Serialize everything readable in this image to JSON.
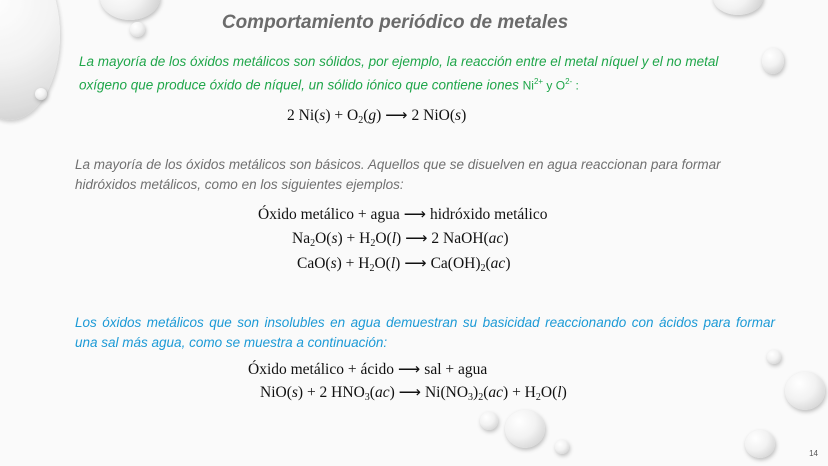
{
  "slide": {
    "title": "Comportamiento periódico de metales",
    "page_number": "14",
    "colors": {
      "title": "#6b6b6b",
      "para1": "#1fa64a",
      "para2": "#707070",
      "para3": "#1c9ad6"
    },
    "para1": {
      "text": "La mayoría de los óxidos metálicos son sólidos, por ejemplo, la reacción entre el metal níquel y el no metal oxígeno que produce óxido de níquel, un sólido iónico que contiene iones ",
      "ion1": "Ni",
      "ion1_sup": "2+",
      "conj": " y ",
      "ion2": "O",
      "ion2_sup": "2-",
      "end": " :"
    },
    "para2": "La mayoría de los óxidos metálicos son básicos. Aquellos que se disuelven en agua reaccionan para formar hidróxidos metálicos, como en los siguientes ejemplos:",
    "para3": "Los óxidos metálicos que son insolubles en agua demuestran su basicidad reaccionando con ácidos para formar una sal más agua, como se muestra a continuación:",
    "equations": [
      [
        [
          "2 Ni(",
          ""
        ],
        [
          "s",
          "i"
        ],
        [
          ") + O",
          ""
        ],
        [
          "2",
          "sub"
        ],
        [
          "(",
          ""
        ],
        [
          "g",
          "i"
        ],
        [
          ")",
          ""
        ],
        [
          "→",
          "arr"
        ],
        [
          "2 NiO(",
          ""
        ],
        [
          "s",
          "i"
        ],
        [
          ")",
          ""
        ]
      ],
      [
        [
          "Óxido metálico + agua",
          ""
        ],
        [
          "→",
          "arr"
        ],
        [
          "hidróxido metálico",
          ""
        ]
      ],
      [
        [
          "Na",
          ""
        ],
        [
          "2",
          "sub"
        ],
        [
          "O(",
          ""
        ],
        [
          "s",
          "i"
        ],
        [
          ") + H",
          ""
        ],
        [
          "2",
          "sub"
        ],
        [
          "O(",
          ""
        ],
        [
          "l",
          "i"
        ],
        [
          ")",
          ""
        ],
        [
          "→",
          "arr"
        ],
        [
          "2 NaOH(",
          ""
        ],
        [
          "ac",
          "i"
        ],
        [
          ")",
          ""
        ]
      ],
      [
        [
          "CaO(",
          ""
        ],
        [
          "s",
          "i"
        ],
        [
          ") + H",
          ""
        ],
        [
          "2",
          "sub"
        ],
        [
          "O(",
          ""
        ],
        [
          "l",
          "i"
        ],
        [
          ")",
          ""
        ],
        [
          "→",
          "arr"
        ],
        [
          "Ca(OH)",
          ""
        ],
        [
          "2",
          "sub"
        ],
        [
          "(",
          ""
        ],
        [
          "ac",
          "i"
        ],
        [
          ")",
          ""
        ]
      ],
      [
        [
          "Óxido metálico + ácido",
          ""
        ],
        [
          "→",
          "arr"
        ],
        [
          "sal + agua",
          ""
        ]
      ],
      [
        [
          "NiO(",
          ""
        ],
        [
          "s",
          "i"
        ],
        [
          ") + 2 HNO",
          ""
        ],
        [
          "3",
          "sub"
        ],
        [
          "(",
          ""
        ],
        [
          "ac",
          "i"
        ],
        [
          ")",
          ""
        ],
        [
          "→",
          "arr"
        ],
        [
          "Ni(NO",
          ""
        ],
        [
          "3",
          "sub"
        ],
        [
          ")",
          ""
        ],
        [
          "2",
          "sub"
        ],
        [
          "(",
          ""
        ],
        [
          "ac",
          "i"
        ],
        [
          ") + H",
          ""
        ],
        [
          "2",
          "sub"
        ],
        [
          "O(",
          ""
        ],
        [
          "l",
          "i"
        ],
        [
          ")",
          ""
        ]
      ]
    ]
  }
}
